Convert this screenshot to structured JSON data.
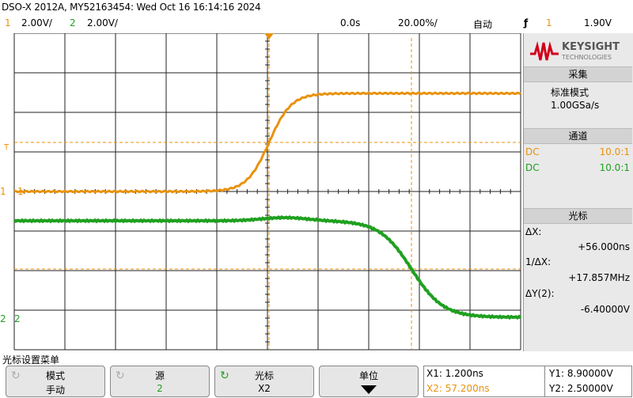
{
  "header": {
    "title": "DSO-X 2012A, MY52163454: Wed Oct 16 16:14:16 2024",
    "ch1_num": "1",
    "ch1_scale": "2.00V/",
    "ch2_num": "2",
    "ch2_scale": "2.00V/",
    "time_delay": "0.0s",
    "time_scale": "20.00%/",
    "trigger_mode": "自动",
    "trigger_icon": "rising-edge-icon",
    "trigger_channel": "1",
    "trigger_level": "1.90V"
  },
  "waveform": {
    "ch1_color": "#e8920c",
    "ch2_color": "#1fa01f",
    "ch1_marker": "1",
    "ch2_marker": "2",
    "trigger_marker_color": "#e8920c"
  },
  "side_panel": {
    "logo_text": "KEYSIGHT",
    "logo_sub": "TECHNOLOGIES",
    "acquire_header": "采集",
    "acquire_mode": "标准模式",
    "sample_rate": "1.00GSa/s",
    "channels_header": "通道",
    "ch1_coupling": "DC",
    "ch1_probe": "10.0:1",
    "ch2_coupling": "DC",
    "ch2_probe": "10.0:1",
    "cursors_header": "光标",
    "dx_label": "ΔX:",
    "dx_value": "+56.000ns",
    "inv_dx_label": "1/ΔX:",
    "inv_dx_value": "+17.857MHz",
    "dy_label": "ΔY(2):",
    "dy_value": "-6.40000V"
  },
  "softkeys": {
    "menu_label": "光标设置菜单",
    "mode_title": "模式",
    "mode_value": "手动",
    "source_title": "源",
    "source_value": "2",
    "cursors_title": "光标",
    "cursors_value": "X2",
    "units_title": "单位",
    "units_icon": "down-arrow-icon"
  },
  "readout": {
    "x1": "X1: 1.200ns",
    "x2": "X2: 57.200ns",
    "y1": "Y1: 8.90000V",
    "y2": "Y2: 2.50000V"
  }
}
